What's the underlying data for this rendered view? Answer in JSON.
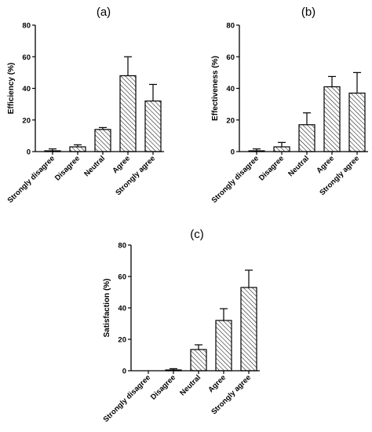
{
  "chart_data": [
    {
      "type": "bar",
      "panel_label": "(a)",
      "ylabel": "Efficiency (%)",
      "ylim": [
        0,
        80
      ],
      "yticks": [
        0,
        20,
        40,
        60,
        80
      ],
      "categories": [
        "Strongly disagree",
        "Disagree",
        "Neutral",
        "Agree",
        "Strongly agree"
      ],
      "values": [
        0.5,
        3,
        14,
        48,
        32
      ],
      "errors": [
        1.2,
        1.3,
        1.2,
        12,
        10.5
      ],
      "fill": "diagonal-hatch",
      "color": "#000000"
    },
    {
      "type": "bar",
      "panel_label": "(b)",
      "ylabel": "Effectiveness (%)",
      "ylim": [
        0,
        80
      ],
      "yticks": [
        0,
        20,
        40,
        60,
        80
      ],
      "categories": [
        "Strongly disagree",
        "Disagree",
        "Neutral",
        "Agree",
        "Strongly agree"
      ],
      "values": [
        0.5,
        3,
        17,
        41,
        37
      ],
      "errors": [
        1.2,
        2.8,
        7.5,
        6.5,
        13
      ],
      "fill": "diagonal-hatch",
      "color": "#000000"
    },
    {
      "type": "bar",
      "panel_label": "(c)",
      "ylabel": "Satisfaction (%)",
      "ylim": [
        0,
        80
      ],
      "yticks": [
        0,
        20,
        40,
        60,
        80
      ],
      "categories": [
        "Strongly disagree",
        "Disagree",
        "Neutral",
        "Agree",
        "Strongly agree"
      ],
      "values": [
        0,
        0.5,
        13.5,
        32,
        53
      ],
      "errors": [
        0,
        0.8,
        3,
        7.5,
        11
      ],
      "fill": "diagonal-hatch",
      "color": "#000000"
    }
  ]
}
